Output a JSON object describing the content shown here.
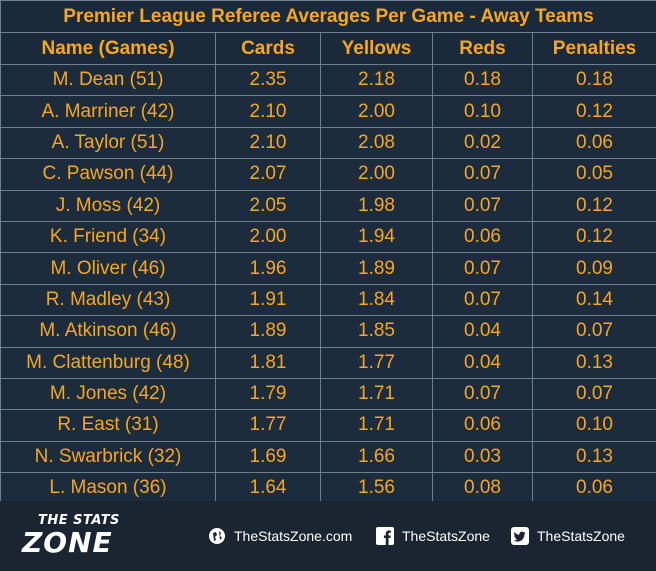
{
  "title": "Premier League Referee Averages Per Game - Away Teams",
  "columns": [
    "Name (Games)",
    "Cards",
    "Yellows",
    "Reds",
    "Penalties"
  ],
  "rows": [
    {
      "name": "M. Dean (51)",
      "cards": "2.35",
      "yellows": "2.18",
      "reds": "0.18",
      "penalties": "0.18"
    },
    {
      "name": "A. Marriner (42)",
      "cards": "2.10",
      "yellows": "2.00",
      "reds": "0.10",
      "penalties": "0.12"
    },
    {
      "name": "A. Taylor (51)",
      "cards": "2.10",
      "yellows": "2.08",
      "reds": "0.02",
      "penalties": "0.06"
    },
    {
      "name": "C. Pawson (44)",
      "cards": "2.07",
      "yellows": "2.00",
      "reds": "0.07",
      "penalties": "0.05"
    },
    {
      "name": "J. Moss (42)",
      "cards": "2.05",
      "yellows": "1.98",
      "reds": "0.07",
      "penalties": "0.12"
    },
    {
      "name": "K. Friend (34)",
      "cards": "2.00",
      "yellows": "1.94",
      "reds": "0.06",
      "penalties": "0.12"
    },
    {
      "name": "M. Oliver (46)",
      "cards": "1.96",
      "yellows": "1.89",
      "reds": "0.07",
      "penalties": "0.09"
    },
    {
      "name": "R. Madley (43)",
      "cards": "1.91",
      "yellows": "1.84",
      "reds": "0.07",
      "penalties": "0.14"
    },
    {
      "name": "M. Atkinson (46)",
      "cards": "1.89",
      "yellows": "1.85",
      "reds": "0.04",
      "penalties": "0.07"
    },
    {
      "name": "M. Clattenburg (48)",
      "cards": "1.81",
      "yellows": "1.77",
      "reds": "0.04",
      "penalties": "0.13"
    },
    {
      "name": "M. Jones (42)",
      "cards": "1.79",
      "yellows": "1.71",
      "reds": "0.07",
      "penalties": "0.07"
    },
    {
      "name": "R. East (31)",
      "cards": "1.77",
      "yellows": "1.71",
      "reds": "0.06",
      "penalties": "0.10"
    },
    {
      "name": "N. Swarbrick (32)",
      "cards": "1.69",
      "yellows": "1.66",
      "reds": "0.03",
      "penalties": "0.13"
    },
    {
      "name": "L. Mason (36)",
      "cards": "1.64",
      "yellows": "1.56",
      "reds": "0.08",
      "penalties": "0.06"
    }
  ],
  "chart_data": {
    "type": "table",
    "title": "Premier League Referee Averages Per Game - Away Teams",
    "columns": [
      "Name (Games)",
      "Cards",
      "Yellows",
      "Reds",
      "Penalties"
    ],
    "rows": [
      [
        "M. Dean (51)",
        2.35,
        2.18,
        0.18,
        0.18
      ],
      [
        "A. Marriner (42)",
        2.1,
        2.0,
        0.1,
        0.12
      ],
      [
        "A. Taylor (51)",
        2.1,
        2.08,
        0.02,
        0.06
      ],
      [
        "C. Pawson (44)",
        2.07,
        2.0,
        0.07,
        0.05
      ],
      [
        "J. Moss (42)",
        2.05,
        1.98,
        0.07,
        0.12
      ],
      [
        "K. Friend (34)",
        2.0,
        1.94,
        0.06,
        0.12
      ],
      [
        "M. Oliver (46)",
        1.96,
        1.89,
        0.07,
        0.09
      ],
      [
        "R. Madley (43)",
        1.91,
        1.84,
        0.07,
        0.14
      ],
      [
        "M. Atkinson (46)",
        1.89,
        1.85,
        0.04,
        0.07
      ],
      [
        "M. Clattenburg (48)",
        1.81,
        1.77,
        0.04,
        0.13
      ],
      [
        "M. Jones (42)",
        1.79,
        1.71,
        0.07,
        0.07
      ],
      [
        "R. East (31)",
        1.77,
        1.71,
        0.06,
        0.1
      ],
      [
        "N. Swarbrick (32)",
        1.69,
        1.66,
        0.03,
        0.13
      ],
      [
        "L. Mason (36)",
        1.64,
        1.56,
        0.08,
        0.06
      ]
    ]
  },
  "footer": {
    "logo_top": "THE STATS",
    "logo_main": "ZONE",
    "website": "TheStatsZone.com",
    "facebook": "TheStatsZone",
    "twitter": "TheStatsZone",
    "website_icon": "globe-icon",
    "facebook_icon": "facebook-icon",
    "twitter_icon": "twitter-icon"
  },
  "colors": {
    "text": "#f5a623",
    "table_bg": "#1d2c3c",
    "header_bg": "#1b2a3a",
    "grid": "#6b8090",
    "footer_bg": "#1a2531",
    "footer_text": "#ffffff"
  }
}
